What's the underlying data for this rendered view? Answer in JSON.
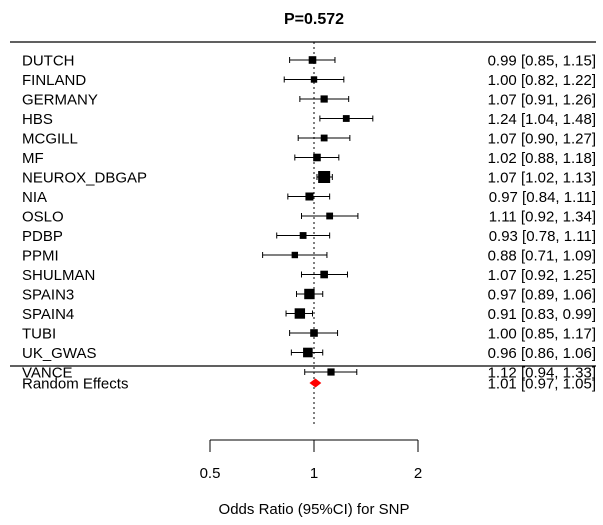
{
  "chart_data": {
    "type": "forest",
    "title": "P=0.572",
    "xlabel": "Odds Ratio (95%CI) for SNP",
    "ylabel": "",
    "x_scale": "log",
    "x_ticks": [
      0.5,
      1,
      2
    ],
    "x_tick_labels": [
      "0.5",
      "1",
      "2"
    ],
    "reference_line": 1,
    "studies": [
      {
        "label": "DUTCH",
        "or": 0.99,
        "lo": 0.85,
        "hi": 1.15,
        "text": "0.99 [0.85, 1.15]",
        "weight": 0.45
      },
      {
        "label": "FINLAND",
        "or": 1.0,
        "lo": 0.82,
        "hi": 1.22,
        "text": "1.00 [0.82, 1.22]",
        "weight": 0.3
      },
      {
        "label": "GERMANY",
        "or": 1.07,
        "lo": 0.91,
        "hi": 1.26,
        "text": "1.07 [0.91, 1.26]",
        "weight": 0.4
      },
      {
        "label": "HBS",
        "or": 1.24,
        "lo": 1.04,
        "hi": 1.48,
        "text": "1.24 [1.04, 1.48]",
        "weight": 0.35
      },
      {
        "label": "MCGILL",
        "or": 1.07,
        "lo": 0.9,
        "hi": 1.27,
        "text": "1.07 [0.90, 1.27]",
        "weight": 0.35
      },
      {
        "label": "MF",
        "or": 1.02,
        "lo": 0.88,
        "hi": 1.18,
        "text": "1.02 [0.88, 1.18]",
        "weight": 0.45
      },
      {
        "label": "NEUROX_DBGAP",
        "or": 1.07,
        "lo": 1.02,
        "hi": 1.13,
        "text": "1.07 [1.02, 1.13]",
        "weight": 1.0
      },
      {
        "label": "NIA",
        "or": 0.97,
        "lo": 0.84,
        "hi": 1.11,
        "text": "0.97 [0.84, 1.11]",
        "weight": 0.5
      },
      {
        "label": "OSLO",
        "or": 1.11,
        "lo": 0.92,
        "hi": 1.34,
        "text": "1.11 [0.92, 1.34]",
        "weight": 0.35
      },
      {
        "label": "PDBP",
        "or": 0.93,
        "lo": 0.78,
        "hi": 1.11,
        "text": "0.93 [0.78, 1.11]",
        "weight": 0.35
      },
      {
        "label": "PPMI",
        "or": 0.88,
        "lo": 0.71,
        "hi": 1.09,
        "text": "0.88 [0.71, 1.09]",
        "weight": 0.3
      },
      {
        "label": "SHULMAN",
        "or": 1.07,
        "lo": 0.92,
        "hi": 1.25,
        "text": "1.07 [0.92, 1.25]",
        "weight": 0.45
      },
      {
        "label": "SPAIN3",
        "or": 0.97,
        "lo": 0.89,
        "hi": 1.06,
        "text": "0.97 [0.89, 1.06]",
        "weight": 0.8
      },
      {
        "label": "SPAIN4",
        "or": 0.91,
        "lo": 0.83,
        "hi": 0.99,
        "text": "0.91 [0.83, 0.99]",
        "weight": 0.8
      },
      {
        "label": "TUBI",
        "or": 1.0,
        "lo": 0.85,
        "hi": 1.17,
        "text": "1.00 [0.85, 1.17]",
        "weight": 0.45
      },
      {
        "label": "UK_GWAS",
        "or": 0.96,
        "lo": 0.86,
        "hi": 1.06,
        "text": "0.96 [0.86, 1.06]",
        "weight": 0.7
      },
      {
        "label": "VANCE",
        "or": 1.12,
        "lo": 0.94,
        "hi": 1.33,
        "text": "1.12 [0.94, 1.33]",
        "weight": 0.4
      }
    ],
    "summary": {
      "label": "Random Effects",
      "or": 1.01,
      "lo": 0.97,
      "hi": 1.05,
      "text": "1.01 [0.97, 1.05]",
      "color": "#ff0000"
    },
    "marker_color": "#000000",
    "grid": false
  }
}
